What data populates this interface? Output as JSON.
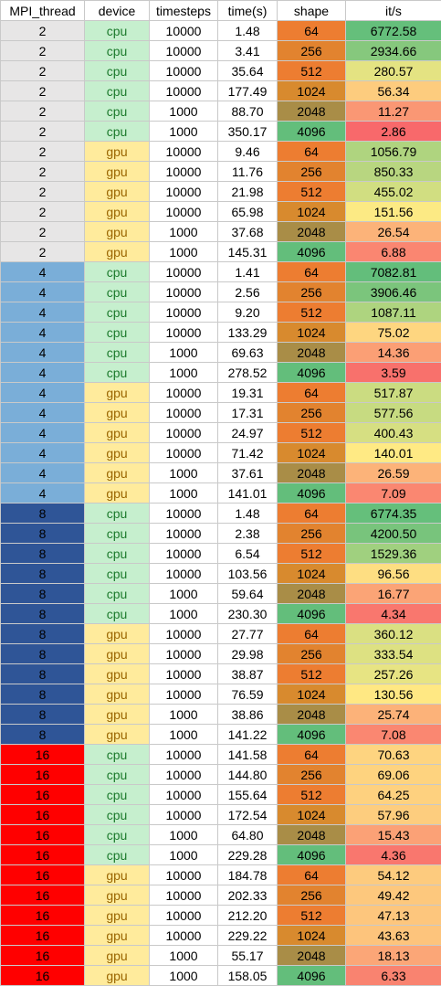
{
  "table": {
    "headers": [
      "MPI_thread",
      "device",
      "timesteps",
      "time(s)",
      "shape",
      "it/s"
    ],
    "colors": {
      "mpi": {
        "2": "#e7e6e6",
        "4": "#7aaed8",
        "8": "#2f5597",
        "16": "#ff0000"
      },
      "device": {
        "cpu": "#c6efce",
        "gpu": "#ffeb9c"
      },
      "shape": {
        "64": "#ed7d31",
        "256": "#e2832f",
        "512": "#ed7d31",
        "1024": "#d88a2e",
        "2048": "#a98d47",
        "4096": "#63be7b"
      },
      "scale_low": "#f8696b",
      "scale_mid": "#ffeb84",
      "scale_high": "#63be7b"
    },
    "rows": [
      {
        "mpi": "2",
        "device": "cpu",
        "timesteps": "10000",
        "time": "1.48",
        "shape": "64",
        "its": "6772.58"
      },
      {
        "mpi": "2",
        "device": "cpu",
        "timesteps": "10000",
        "time": "3.41",
        "shape": "256",
        "its": "2934.66"
      },
      {
        "mpi": "2",
        "device": "cpu",
        "timesteps": "10000",
        "time": "35.64",
        "shape": "512",
        "its": "280.57"
      },
      {
        "mpi": "2",
        "device": "cpu",
        "timesteps": "10000",
        "time": "177.49",
        "shape": "1024",
        "its": "56.34"
      },
      {
        "mpi": "2",
        "device": "cpu",
        "timesteps": "1000",
        "time": "88.70",
        "shape": "2048",
        "its": "11.27"
      },
      {
        "mpi": "2",
        "device": "cpu",
        "timesteps": "1000",
        "time": "350.17",
        "shape": "4096",
        "its": "2.86"
      },
      {
        "mpi": "2",
        "device": "gpu",
        "timesteps": "10000",
        "time": "9.46",
        "shape": "64",
        "its": "1056.79"
      },
      {
        "mpi": "2",
        "device": "gpu",
        "timesteps": "10000",
        "time": "11.76",
        "shape": "256",
        "its": "850.33"
      },
      {
        "mpi": "2",
        "device": "gpu",
        "timesteps": "10000",
        "time": "21.98",
        "shape": "512",
        "its": "455.02"
      },
      {
        "mpi": "2",
        "device": "gpu",
        "timesteps": "10000",
        "time": "65.98",
        "shape": "1024",
        "its": "151.56"
      },
      {
        "mpi": "2",
        "device": "gpu",
        "timesteps": "1000",
        "time": "37.68",
        "shape": "2048",
        "its": "26.54"
      },
      {
        "mpi": "2",
        "device": "gpu",
        "timesteps": "1000",
        "time": "145.31",
        "shape": "4096",
        "its": "6.88"
      },
      {
        "mpi": "4",
        "device": "cpu",
        "timesteps": "10000",
        "time": "1.41",
        "shape": "64",
        "its": "7082.81"
      },
      {
        "mpi": "4",
        "device": "cpu",
        "timesteps": "10000",
        "time": "2.56",
        "shape": "256",
        "its": "3906.46"
      },
      {
        "mpi": "4",
        "device": "cpu",
        "timesteps": "10000",
        "time": "9.20",
        "shape": "512",
        "its": "1087.11"
      },
      {
        "mpi": "4",
        "device": "cpu",
        "timesteps": "10000",
        "time": "133.29",
        "shape": "1024",
        "its": "75.02"
      },
      {
        "mpi": "4",
        "device": "cpu",
        "timesteps": "1000",
        "time": "69.63",
        "shape": "2048",
        "its": "14.36"
      },
      {
        "mpi": "4",
        "device": "cpu",
        "timesteps": "1000",
        "time": "278.52",
        "shape": "4096",
        "its": "3.59"
      },
      {
        "mpi": "4",
        "device": "gpu",
        "timesteps": "10000",
        "time": "19.31",
        "shape": "64",
        "its": "517.87"
      },
      {
        "mpi": "4",
        "device": "gpu",
        "timesteps": "10000",
        "time": "17.31",
        "shape": "256",
        "its": "577.56"
      },
      {
        "mpi": "4",
        "device": "gpu",
        "timesteps": "10000",
        "time": "24.97",
        "shape": "512",
        "its": "400.43"
      },
      {
        "mpi": "4",
        "device": "gpu",
        "timesteps": "10000",
        "time": "71.42",
        "shape": "1024",
        "its": "140.01"
      },
      {
        "mpi": "4",
        "device": "gpu",
        "timesteps": "1000",
        "time": "37.61",
        "shape": "2048",
        "its": "26.59"
      },
      {
        "mpi": "4",
        "device": "gpu",
        "timesteps": "1000",
        "time": "141.01",
        "shape": "4096",
        "its": "7.09"
      },
      {
        "mpi": "8",
        "device": "cpu",
        "timesteps": "10000",
        "time": "1.48",
        "shape": "64",
        "its": "6774.35"
      },
      {
        "mpi": "8",
        "device": "cpu",
        "timesteps": "10000",
        "time": "2.38",
        "shape": "256",
        "its": "4200.50"
      },
      {
        "mpi": "8",
        "device": "cpu",
        "timesteps": "10000",
        "time": "6.54",
        "shape": "512",
        "its": "1529.36"
      },
      {
        "mpi": "8",
        "device": "cpu",
        "timesteps": "10000",
        "time": "103.56",
        "shape": "1024",
        "its": "96.56"
      },
      {
        "mpi": "8",
        "device": "cpu",
        "timesteps": "1000",
        "time": "59.64",
        "shape": "2048",
        "its": "16.77"
      },
      {
        "mpi": "8",
        "device": "cpu",
        "timesteps": "1000",
        "time": "230.30",
        "shape": "4096",
        "its": "4.34"
      },
      {
        "mpi": "8",
        "device": "gpu",
        "timesteps": "10000",
        "time": "27.77",
        "shape": "64",
        "its": "360.12"
      },
      {
        "mpi": "8",
        "device": "gpu",
        "timesteps": "10000",
        "time": "29.98",
        "shape": "256",
        "its": "333.54"
      },
      {
        "mpi": "8",
        "device": "gpu",
        "timesteps": "10000",
        "time": "38.87",
        "shape": "512",
        "its": "257.26"
      },
      {
        "mpi": "8",
        "device": "gpu",
        "timesteps": "10000",
        "time": "76.59",
        "shape": "1024",
        "its": "130.56"
      },
      {
        "mpi": "8",
        "device": "gpu",
        "timesteps": "1000",
        "time": "38.86",
        "shape": "2048",
        "its": "25.74"
      },
      {
        "mpi": "8",
        "device": "gpu",
        "timesteps": "1000",
        "time": "141.22",
        "shape": "4096",
        "its": "7.08"
      },
      {
        "mpi": "16",
        "device": "cpu",
        "timesteps": "10000",
        "time": "141.58",
        "shape": "64",
        "its": "70.63"
      },
      {
        "mpi": "16",
        "device": "cpu",
        "timesteps": "10000",
        "time": "144.80",
        "shape": "256",
        "its": "69.06"
      },
      {
        "mpi": "16",
        "device": "cpu",
        "timesteps": "10000",
        "time": "155.64",
        "shape": "512",
        "its": "64.25"
      },
      {
        "mpi": "16",
        "device": "cpu",
        "timesteps": "10000",
        "time": "172.54",
        "shape": "1024",
        "its": "57.96"
      },
      {
        "mpi": "16",
        "device": "cpu",
        "timesteps": "1000",
        "time": "64.80",
        "shape": "2048",
        "its": "15.43"
      },
      {
        "mpi": "16",
        "device": "cpu",
        "timesteps": "1000",
        "time": "229.28",
        "shape": "4096",
        "its": "4.36"
      },
      {
        "mpi": "16",
        "device": "gpu",
        "timesteps": "10000",
        "time": "184.78",
        "shape": "64",
        "its": "54.12"
      },
      {
        "mpi": "16",
        "device": "gpu",
        "timesteps": "10000",
        "time": "202.33",
        "shape": "256",
        "its": "49.42"
      },
      {
        "mpi": "16",
        "device": "gpu",
        "timesteps": "10000",
        "time": "212.20",
        "shape": "512",
        "its": "47.13"
      },
      {
        "mpi": "16",
        "device": "gpu",
        "timesteps": "10000",
        "time": "229.22",
        "shape": "1024",
        "its": "43.63"
      },
      {
        "mpi": "16",
        "device": "gpu",
        "timesteps": "1000",
        "time": "55.17",
        "shape": "2048",
        "its": "18.13"
      },
      {
        "mpi": "16",
        "device": "gpu",
        "timesteps": "1000",
        "time": "158.05",
        "shape": "4096",
        "its": "6.33"
      }
    ]
  }
}
